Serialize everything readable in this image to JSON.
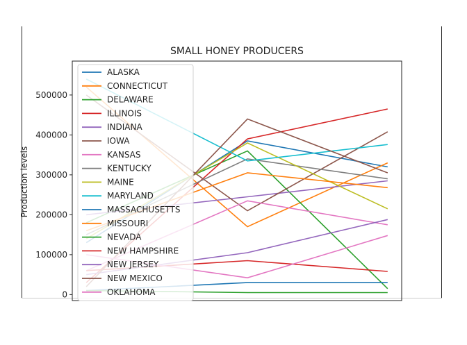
{
  "chart_data": {
    "type": "line",
    "title": "SMALL HONEY PRODUCERS",
    "xlabel": "",
    "ylabel": "Production levels",
    "ylim": [
      -15000,
      585000
    ],
    "xlim": [
      -0.25,
      2.1
    ],
    "y_ticks": [
      {
        "value": 0,
        "label": "0"
      },
      {
        "value": 100000,
        "label": "100000"
      },
      {
        "value": 200000,
        "label": "200000"
      },
      {
        "value": 300000,
        "label": "300000"
      },
      {
        "value": 400000,
        "label": "400000"
      },
      {
        "value": 500000,
        "label": "500000"
      }
    ],
    "grid": false,
    "legend_position": "upper-left",
    "series": [
      {
        "name": "ALASKA",
        "color": "#1f77b4",
        "x": [
          -0.15,
          1,
          2
        ],
        "y": [
          130000,
          385000,
          320000
        ]
      },
      {
        "name": "CONNECTICUT",
        "color": "#ff7f0e",
        "x": [
          -0.15,
          1,
          2
        ],
        "y": [
          520000,
          170000,
          330000
        ]
      },
      {
        "name": "DELAWARE",
        "color": "#2ca02c",
        "x": [
          -0.15,
          1,
          2
        ],
        "y": [
          180000,
          360000,
          15000
        ]
      },
      {
        "name": "ILLINOIS",
        "color": "#d62728",
        "x": [
          -0.15,
          1,
          2
        ],
        "y": [
          30000,
          390000,
          465000
        ]
      },
      {
        "name": "INDIANA",
        "color": "#9467bd",
        "x": [
          -0.15,
          1,
          2
        ],
        "y": [
          200000,
          245000,
          285000
        ]
      },
      {
        "name": "IOWA",
        "color": "#8c564b",
        "x": [
          -0.15,
          1,
          2
        ],
        "y": [
          500000,
          210000,
          408000
        ]
      },
      {
        "name": "KANSAS",
        "color": "#e377c2",
        "x": [
          -0.15,
          1,
          2
        ],
        "y": [
          60000,
          235000,
          175000
        ]
      },
      {
        "name": "KENTUCKY",
        "color": "#7f7f7f",
        "x": [
          -0.15,
          1,
          2
        ],
        "y": [
          150000,
          340000,
          290000
        ]
      },
      {
        "name": "MAINE",
        "color": "#bcbd22",
        "x": [
          -0.15,
          1,
          2
        ],
        "y": [
          140000,
          380000,
          215000
        ]
      },
      {
        "name": "MARYLAND",
        "color": "#17becf",
        "x": [
          -0.15,
          1,
          2
        ],
        "y": [
          540000,
          335000,
          376000
        ]
      },
      {
        "name": "MASSACHUSETTS",
        "color": "#1f77b4",
        "x": [
          -0.15,
          1,
          2
        ],
        "y": [
          10000,
          30000,
          30000
        ]
      },
      {
        "name": "MISSOURI",
        "color": "#ff7f0e",
        "x": [
          -0.15,
          1,
          2
        ],
        "y": [
          160000,
          305000,
          268000
        ]
      },
      {
        "name": "NEVADA",
        "color": "#2ca02c",
        "x": [
          -0.15,
          1,
          2
        ],
        "y": [
          10000,
          5000,
          5000
        ]
      },
      {
        "name": "NEW HAMPSHIRE",
        "color": "#d62728",
        "x": [
          -0.15,
          1,
          2
        ],
        "y": [
          60000,
          85000,
          58000
        ]
      },
      {
        "name": "NEW JERSEY",
        "color": "#9467bd",
        "x": [
          -0.15,
          1,
          2
        ],
        "y": [
          50000,
          105000,
          188000
        ]
      },
      {
        "name": "NEW MEXICO",
        "color": "#8c564b",
        "x": [
          -0.15,
          1,
          2
        ],
        "y": [
          20000,
          440000,
          305000
        ]
      },
      {
        "name": "OKLAHOMA",
        "color": "#e377c2",
        "x": [
          -0.15,
          1,
          2
        ],
        "y": [
          100000,
          42000,
          148000
        ]
      }
    ]
  }
}
